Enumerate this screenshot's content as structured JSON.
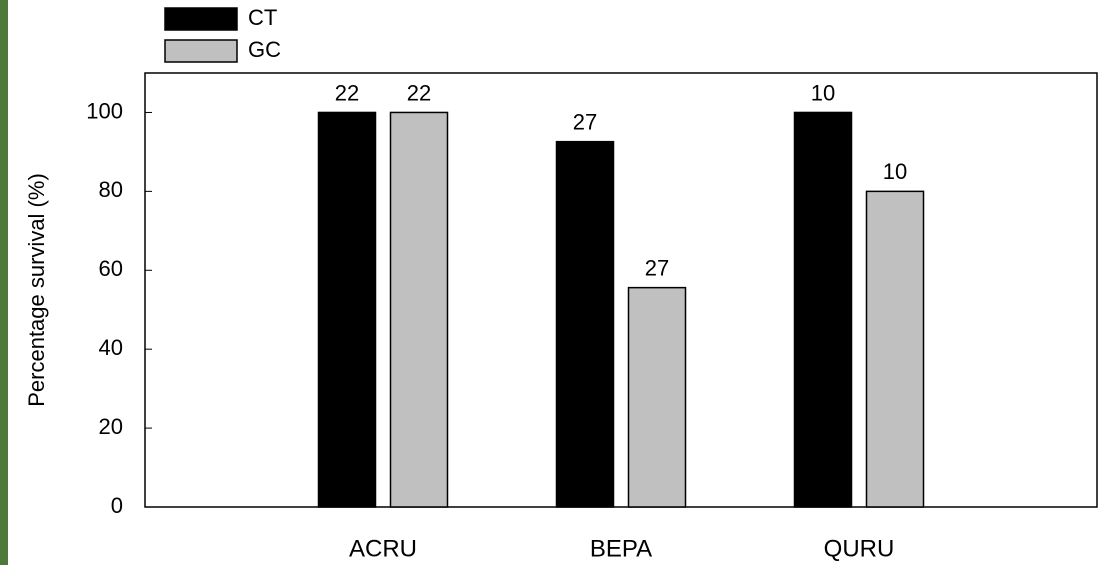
{
  "chart_data": {
    "type": "bar",
    "y_label": "Percentage survival (%)",
    "categories": [
      "ACRU",
      "BEPA",
      "QURU"
    ],
    "series": [
      {
        "name": "CT",
        "color": "#000000",
        "values": [
          100,
          92.6,
          100
        ],
        "sample_sizes": [
          22,
          27,
          10
        ]
      },
      {
        "name": "GC",
        "color": "#c0c0c0",
        "values": [
          100,
          55.6,
          80
        ],
        "sample_sizes": [
          22,
          27,
          10
        ]
      }
    ],
    "ylim": [
      0,
      110
    ],
    "yticks": [
      0,
      20,
      40,
      60,
      80,
      100
    ],
    "legend": "top-left"
  }
}
